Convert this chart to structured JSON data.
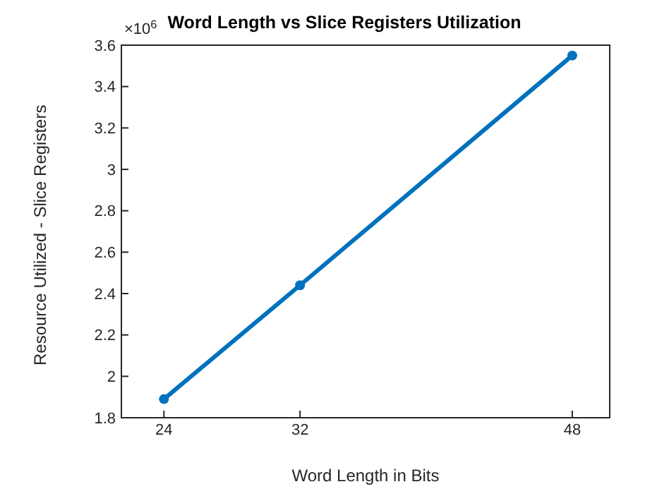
{
  "chart_data": {
    "type": "line",
    "title": "Word Length vs Slice Registers Utilization",
    "xlabel": "Word Length in Bits",
    "ylabel": "Resource Utilized - Slice Registers",
    "annotations": [
      "×10$^{6}$"
    ],
    "x": [
      24,
      32,
      48
    ],
    "series": [
      {
        "color": "#0072bd",
        "values": [
          1.89,
          2.44,
          3.55
        ]
      }
    ],
    "xlim": [
      21.5,
      50.2
    ],
    "xticks": [
      24,
      32,
      48
    ],
    "ylim": [
      1.8,
      3.6
    ],
    "yticks": [
      1.8,
      2,
      2.2,
      2.4,
      2.6,
      2.8,
      3,
      3.2,
      3.4,
      3.6
    ],
    "grid": false,
    "legend": false,
    "marker": "circle",
    "line_style": "solid"
  }
}
